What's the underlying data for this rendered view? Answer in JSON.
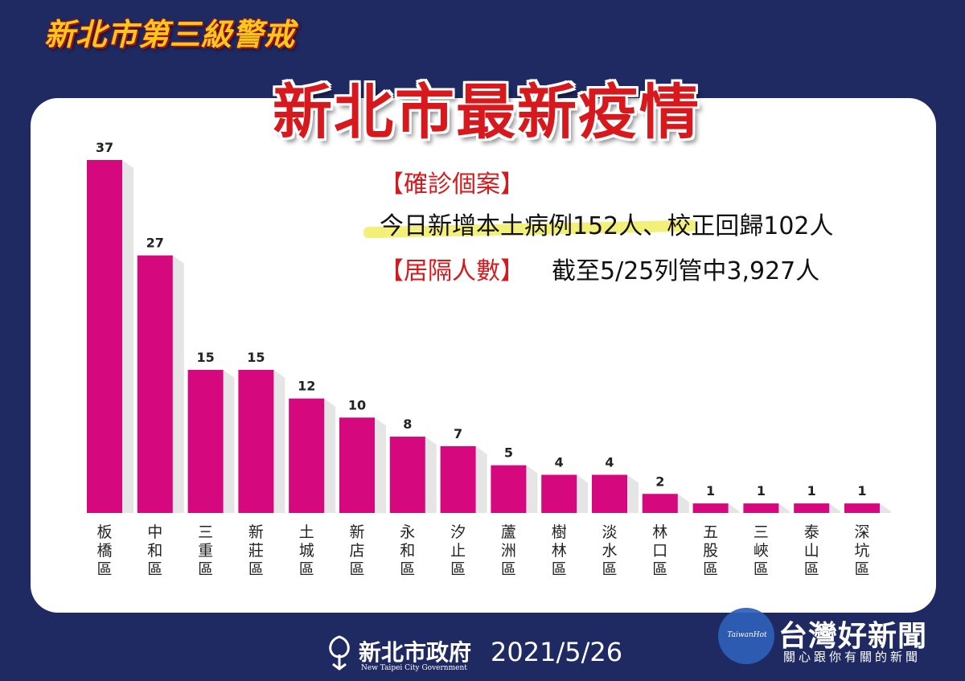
{
  "header": {
    "subtitle": "新北市第三級警戒",
    "title": "新北市最新疫情"
  },
  "info": {
    "cases_label": "【確診個案】",
    "cases_text": "今日新增本土病例152人、校正回歸102人",
    "isolation_label": "【居隔人數】",
    "isolation_text": "截至5/25列管中3,927人"
  },
  "footer": {
    "org": "新北市政府",
    "org_en": "New Taipei City Government",
    "date": "2021/5/26"
  },
  "watermark": {
    "circle_text": "TaiwanHot",
    "name": "台灣好新聞",
    "slogan": "關心跟你有關的新聞"
  },
  "colors": {
    "bar": "#d6087e",
    "background": "#1f2a63",
    "title": "#d7191d",
    "subtitle": "#f5c81d"
  },
  "chart_data": {
    "type": "bar",
    "categories": [
      "板橋區",
      "中和區",
      "三重區",
      "新莊區",
      "土城區",
      "新店區",
      "永和區",
      "汐止區",
      "蘆洲區",
      "樹林區",
      "淡水區",
      "林口區",
      "五股區",
      "三峽區",
      "泰山區",
      "深坑區"
    ],
    "values": [
      37,
      27,
      15,
      15,
      12,
      10,
      8,
      7,
      5,
      4,
      4,
      2,
      1,
      1,
      1,
      1
    ],
    "ylim": [
      0,
      37
    ],
    "grid": false,
    "legend": "none"
  }
}
